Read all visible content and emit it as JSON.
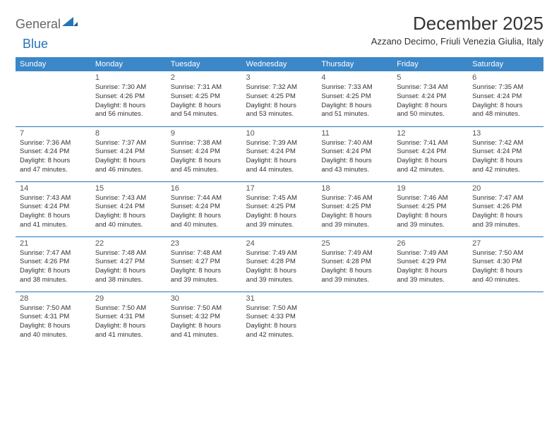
{
  "logo": {
    "general": "General",
    "blue": "Blue"
  },
  "title": "December 2025",
  "location": "Azzano Decimo, Friuli Venezia Giulia, Italy",
  "colors": {
    "header_bg": "#3b87c8",
    "header_text": "#ffffff",
    "rule": "#2773b7",
    "logo_gray": "#666666",
    "logo_blue": "#2773b7",
    "text": "#333333",
    "daynum": "#555555",
    "background": "#ffffff"
  },
  "fonts": {
    "title_size": 26,
    "location_size": 13,
    "weekday_size": 11,
    "daynum_size": 11,
    "body_size": 9.5
  },
  "weekdays": [
    "Sunday",
    "Monday",
    "Tuesday",
    "Wednesday",
    "Thursday",
    "Friday",
    "Saturday"
  ],
  "weeks": [
    [
      {
        "n": "",
        "lines": []
      },
      {
        "n": "1",
        "lines": [
          "Sunrise: 7:30 AM",
          "Sunset: 4:26 PM",
          "Daylight: 8 hours",
          "and 56 minutes."
        ]
      },
      {
        "n": "2",
        "lines": [
          "Sunrise: 7:31 AM",
          "Sunset: 4:25 PM",
          "Daylight: 8 hours",
          "and 54 minutes."
        ]
      },
      {
        "n": "3",
        "lines": [
          "Sunrise: 7:32 AM",
          "Sunset: 4:25 PM",
          "Daylight: 8 hours",
          "and 53 minutes."
        ]
      },
      {
        "n": "4",
        "lines": [
          "Sunrise: 7:33 AM",
          "Sunset: 4:25 PM",
          "Daylight: 8 hours",
          "and 51 minutes."
        ]
      },
      {
        "n": "5",
        "lines": [
          "Sunrise: 7:34 AM",
          "Sunset: 4:24 PM",
          "Daylight: 8 hours",
          "and 50 minutes."
        ]
      },
      {
        "n": "6",
        "lines": [
          "Sunrise: 7:35 AM",
          "Sunset: 4:24 PM",
          "Daylight: 8 hours",
          "and 48 minutes."
        ]
      }
    ],
    [
      {
        "n": "7",
        "lines": [
          "Sunrise: 7:36 AM",
          "Sunset: 4:24 PM",
          "Daylight: 8 hours",
          "and 47 minutes."
        ]
      },
      {
        "n": "8",
        "lines": [
          "Sunrise: 7:37 AM",
          "Sunset: 4:24 PM",
          "Daylight: 8 hours",
          "and 46 minutes."
        ]
      },
      {
        "n": "9",
        "lines": [
          "Sunrise: 7:38 AM",
          "Sunset: 4:24 PM",
          "Daylight: 8 hours",
          "and 45 minutes."
        ]
      },
      {
        "n": "10",
        "lines": [
          "Sunrise: 7:39 AM",
          "Sunset: 4:24 PM",
          "Daylight: 8 hours",
          "and 44 minutes."
        ]
      },
      {
        "n": "11",
        "lines": [
          "Sunrise: 7:40 AM",
          "Sunset: 4:24 PM",
          "Daylight: 8 hours",
          "and 43 minutes."
        ]
      },
      {
        "n": "12",
        "lines": [
          "Sunrise: 7:41 AM",
          "Sunset: 4:24 PM",
          "Daylight: 8 hours",
          "and 42 minutes."
        ]
      },
      {
        "n": "13",
        "lines": [
          "Sunrise: 7:42 AM",
          "Sunset: 4:24 PM",
          "Daylight: 8 hours",
          "and 42 minutes."
        ]
      }
    ],
    [
      {
        "n": "14",
        "lines": [
          "Sunrise: 7:43 AM",
          "Sunset: 4:24 PM",
          "Daylight: 8 hours",
          "and 41 minutes."
        ]
      },
      {
        "n": "15",
        "lines": [
          "Sunrise: 7:43 AM",
          "Sunset: 4:24 PM",
          "Daylight: 8 hours",
          "and 40 minutes."
        ]
      },
      {
        "n": "16",
        "lines": [
          "Sunrise: 7:44 AM",
          "Sunset: 4:24 PM",
          "Daylight: 8 hours",
          "and 40 minutes."
        ]
      },
      {
        "n": "17",
        "lines": [
          "Sunrise: 7:45 AM",
          "Sunset: 4:25 PM",
          "Daylight: 8 hours",
          "and 39 minutes."
        ]
      },
      {
        "n": "18",
        "lines": [
          "Sunrise: 7:46 AM",
          "Sunset: 4:25 PM",
          "Daylight: 8 hours",
          "and 39 minutes."
        ]
      },
      {
        "n": "19",
        "lines": [
          "Sunrise: 7:46 AM",
          "Sunset: 4:25 PM",
          "Daylight: 8 hours",
          "and 39 minutes."
        ]
      },
      {
        "n": "20",
        "lines": [
          "Sunrise: 7:47 AM",
          "Sunset: 4:26 PM",
          "Daylight: 8 hours",
          "and 39 minutes."
        ]
      }
    ],
    [
      {
        "n": "21",
        "lines": [
          "Sunrise: 7:47 AM",
          "Sunset: 4:26 PM",
          "Daylight: 8 hours",
          "and 38 minutes."
        ]
      },
      {
        "n": "22",
        "lines": [
          "Sunrise: 7:48 AM",
          "Sunset: 4:27 PM",
          "Daylight: 8 hours",
          "and 38 minutes."
        ]
      },
      {
        "n": "23",
        "lines": [
          "Sunrise: 7:48 AM",
          "Sunset: 4:27 PM",
          "Daylight: 8 hours",
          "and 39 minutes."
        ]
      },
      {
        "n": "24",
        "lines": [
          "Sunrise: 7:49 AM",
          "Sunset: 4:28 PM",
          "Daylight: 8 hours",
          "and 39 minutes."
        ]
      },
      {
        "n": "25",
        "lines": [
          "Sunrise: 7:49 AM",
          "Sunset: 4:28 PM",
          "Daylight: 8 hours",
          "and 39 minutes."
        ]
      },
      {
        "n": "26",
        "lines": [
          "Sunrise: 7:49 AM",
          "Sunset: 4:29 PM",
          "Daylight: 8 hours",
          "and 39 minutes."
        ]
      },
      {
        "n": "27",
        "lines": [
          "Sunrise: 7:50 AM",
          "Sunset: 4:30 PM",
          "Daylight: 8 hours",
          "and 40 minutes."
        ]
      }
    ],
    [
      {
        "n": "28",
        "lines": [
          "Sunrise: 7:50 AM",
          "Sunset: 4:31 PM",
          "Daylight: 8 hours",
          "and 40 minutes."
        ]
      },
      {
        "n": "29",
        "lines": [
          "Sunrise: 7:50 AM",
          "Sunset: 4:31 PM",
          "Daylight: 8 hours",
          "and 41 minutes."
        ]
      },
      {
        "n": "30",
        "lines": [
          "Sunrise: 7:50 AM",
          "Sunset: 4:32 PM",
          "Daylight: 8 hours",
          "and 41 minutes."
        ]
      },
      {
        "n": "31",
        "lines": [
          "Sunrise: 7:50 AM",
          "Sunset: 4:33 PM",
          "Daylight: 8 hours",
          "and 42 minutes."
        ]
      },
      {
        "n": "",
        "lines": []
      },
      {
        "n": "",
        "lines": []
      },
      {
        "n": "",
        "lines": []
      }
    ]
  ]
}
